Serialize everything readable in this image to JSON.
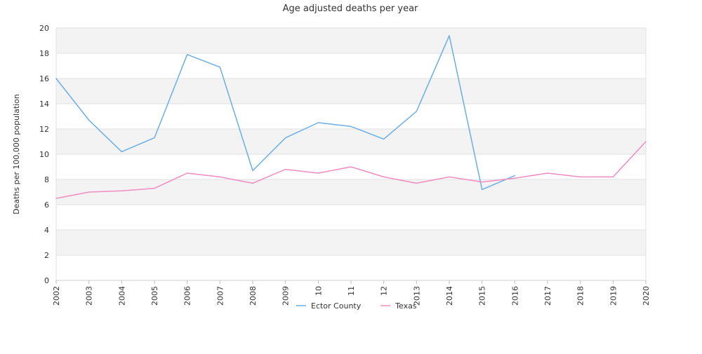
{
  "chart_data": {
    "type": "line",
    "title": "Age adjusted deaths per year",
    "xlabel": "",
    "ylabel": "Deaths per 100,000 population",
    "x": [
      "2002",
      "2003",
      "2004",
      "2005",
      "2006",
      "2007",
      "2008",
      "2009",
      "10",
      "11",
      "12",
      "2013",
      "2014",
      "2015",
      "2016",
      "2017",
      "2018",
      "2019",
      "2020"
    ],
    "ylim": [
      0,
      20
    ],
    "yticks": [
      0,
      2,
      4,
      6,
      8,
      10,
      12,
      14,
      16,
      18,
      20
    ],
    "grid": true,
    "legend_position": "bottom",
    "series": [
      {
        "name": "Ector County",
        "color": "#6aaee8",
        "values": [
          16.0,
          12.7,
          10.2,
          11.3,
          17.9,
          16.9,
          8.7,
          11.3,
          12.5,
          12.2,
          11.2,
          13.4,
          19.4,
          7.2,
          8.3,
          null,
          null,
          null,
          null
        ]
      },
      {
        "name": "Texas",
        "color": "#f08cc0",
        "values": [
          6.5,
          7.0,
          7.1,
          7.3,
          8.5,
          8.2,
          7.7,
          8.8,
          8.5,
          9.0,
          8.2,
          7.7,
          8.2,
          7.8,
          8.1,
          8.5,
          8.2,
          8.2,
          11.0
        ]
      }
    ]
  }
}
